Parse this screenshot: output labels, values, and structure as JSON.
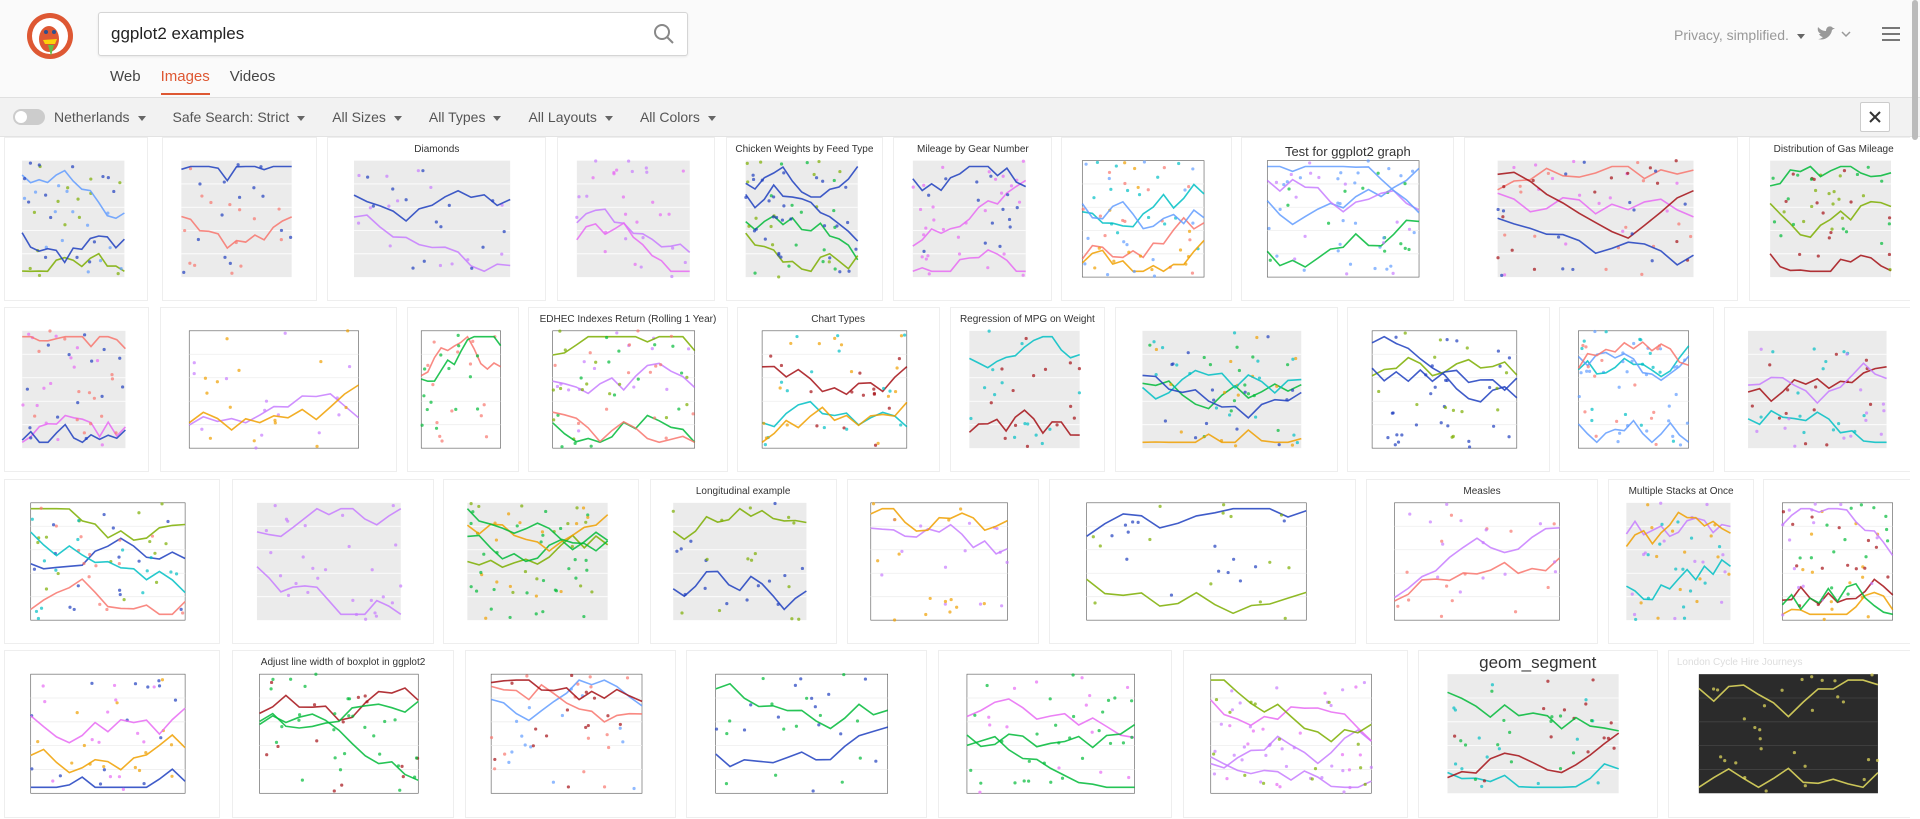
{
  "header": {
    "search_query": "ggplot2 examples",
    "tagline": "Privacy, simplified.",
    "tabs": [
      "Web",
      "Images",
      "Videos"
    ],
    "active_tab": 1
  },
  "filters": {
    "region": "Netherlands",
    "options": [
      "Safe Search: Strict",
      "All Sizes",
      "All Types",
      "All Layouts",
      "All Colors"
    ]
  },
  "thumbnail_captions": [
    "Diamonds",
    "Chicken Weights by Feed Type",
    "Mileage by Gear Number",
    "Test for ggplot2 graph",
    "Distribution of Gas Mileage",
    "EDHEC Indexes Return (Rolling 1 Year)",
    "Chart Types",
    "Regression of MPG on Weight",
    "Longitudinal example",
    "Measles",
    "Multiple Stacks at Once",
    "Adjust line width of boxplot in ggplot2",
    "geom_segment",
    "London Cycle Hire Journeys"
  ]
}
